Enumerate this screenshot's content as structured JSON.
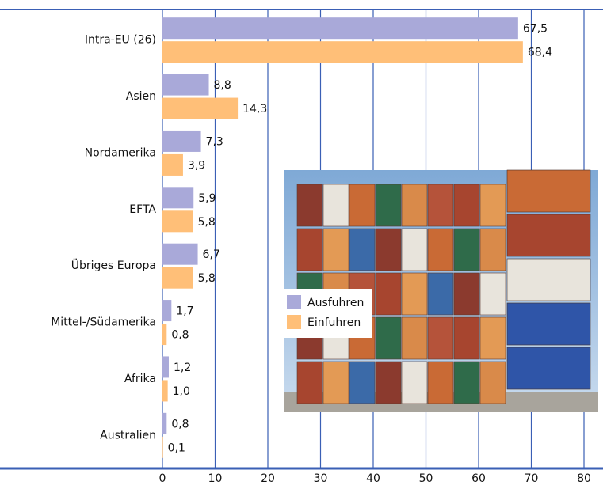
{
  "chart_data": {
    "type": "bar",
    "orientation": "horizontal",
    "categories": [
      "Intra-EU (26)",
      "Asien",
      "Nordamerika",
      "EFTA",
      "Übriges Europa",
      "Mittel-/Südamerika",
      "Afrika",
      "Australien"
    ],
    "series": [
      {
        "name": "Ausfuhren",
        "color": "#a9a9d9",
        "values": [
          67.5,
          8.8,
          7.3,
          5.9,
          6.7,
          1.7,
          1.2,
          0.8
        ],
        "value_labels": [
          "67,5",
          "8,8",
          "7,3",
          "5,9",
          "6,7",
          "1,7",
          "1,2",
          "0,8"
        ]
      },
      {
        "name": "Einfuhren",
        "color": "#ffbf78",
        "values": [
          68.4,
          14.3,
          3.9,
          5.8,
          5.8,
          0.8,
          1.0,
          0.1
        ],
        "value_labels": [
          "68,4",
          "14,3",
          "3,9",
          "5,8",
          "5,8",
          "0,8",
          "1,0",
          "0,1"
        ]
      }
    ],
    "xlim": [
      0,
      80
    ],
    "xticks": [
      0,
      10,
      20,
      30,
      40,
      50,
      60,
      70,
      80
    ],
    "grid": true
  }
}
